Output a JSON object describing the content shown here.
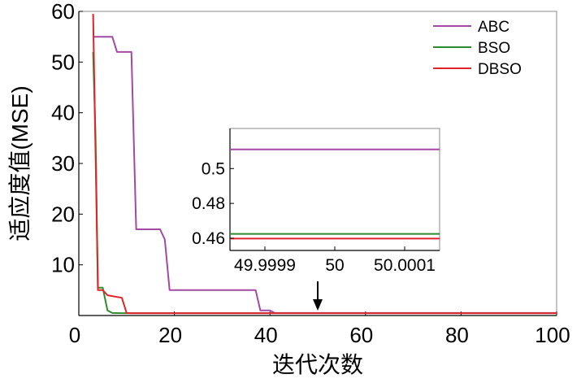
{
  "chart_data": [
    {
      "type": "line",
      "xlabel": "迭代次数",
      "ylabel": "适应度值(MSE)",
      "xlim": [
        0,
        100
      ],
      "ylim": [
        0,
        60
      ],
      "xticks": [
        0,
        20,
        40,
        60,
        80,
        100
      ],
      "xtick_labels": [
        "0",
        "20",
        "40",
        "60",
        "80",
        "100"
      ],
      "yticks": [
        10,
        20,
        30,
        40,
        50,
        60
      ],
      "ytick_labels": [
        "10",
        "20",
        "30",
        "40",
        "50",
        "60"
      ],
      "grid": false,
      "legend_position": "top-right",
      "series": [
        {
          "name": "ABC",
          "color": "#a349a4",
          "x": [
            3,
            7,
            8,
            11,
            12,
            13,
            17,
            18,
            19,
            37,
            38,
            40,
            41,
            100
          ],
          "y": [
            55,
            55,
            52,
            52,
            17,
            17,
            17,
            15,
            5,
            5,
            1,
            1,
            0.5,
            0.5
          ]
        },
        {
          "name": "BSO",
          "color": "#2e8b2e",
          "x": [
            3,
            3.5,
            4,
            5,
            6,
            7,
            9,
            100
          ],
          "y": [
            52,
            35,
            5.5,
            5.5,
            1,
            0.5,
            0.46,
            0.46
          ]
        },
        {
          "name": "DBSO",
          "color": "#e0252a",
          "x": [
            3,
            4,
            5,
            6,
            9,
            10,
            11,
            100
          ],
          "y": [
            59.5,
            5,
            5,
            4,
            3.5,
            0.5,
            0.46,
            0.46
          ]
        }
      ]
    },
    {
      "type": "line",
      "xlabel": "",
      "ylabel": "",
      "xlim": [
        49.99985,
        50.00015
      ],
      "ylim": [
        0.453,
        0.523
      ],
      "xticks": [
        49.9999,
        50,
        50.0001
      ],
      "xtick_labels": [
        "49.9999",
        "50",
        "50.0001"
      ],
      "yticks": [
        0.46,
        0.48,
        0.5
      ],
      "ytick_labels": [
        "0.46",
        "0.48",
        "0.5"
      ],
      "grid": false,
      "series": [
        {
          "name": "ABC",
          "color": "#a349a4",
          "x": [
            49.99985,
            50.00015
          ],
          "y": [
            0.511,
            0.511
          ]
        },
        {
          "name": "BSO",
          "color": "#2e8b2e",
          "x": [
            49.99985,
            50.00015
          ],
          "y": [
            0.4625,
            0.4625
          ]
        },
        {
          "name": "DBSO",
          "color": "#e0252a",
          "x": [
            49.99985,
            50.00015
          ],
          "y": [
            0.4598,
            0.4598
          ]
        }
      ]
    }
  ]
}
